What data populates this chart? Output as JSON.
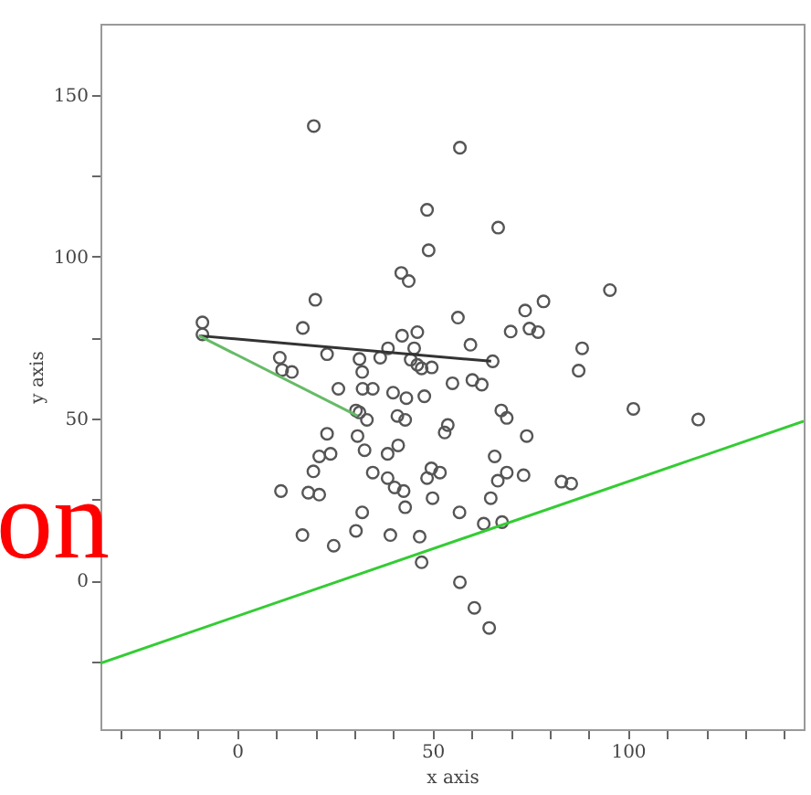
{
  "chart_data": {
    "type": "scatter",
    "xlabel": "x axis",
    "ylabel": "y axis",
    "xlim": [
      -35,
      145
    ],
    "ylim": [
      -46,
      172
    ],
    "xticks": [
      {
        "value": -30,
        "label": null
      },
      {
        "value": -20,
        "label": null
      },
      {
        "value": -10,
        "label": null
      },
      0,
      {
        "value": 10,
        "label": null
      },
      {
        "value": 20,
        "label": null
      },
      {
        "value": 30,
        "label": null
      },
      {
        "value": 40,
        "label": null
      },
      50,
      {
        "value": 60,
        "label": null
      },
      {
        "value": 70,
        "label": null
      },
      {
        "value": 80,
        "label": null
      },
      {
        "value": 90,
        "label": null
      },
      100,
      {
        "value": 110,
        "label": null
      },
      {
        "value": 120,
        "label": null
      },
      {
        "value": 130,
        "label": null
      },
      {
        "value": 140,
        "label": null
      }
    ],
    "yticks": [
      {
        "value": -25,
        "label": null
      },
      0,
      {
        "value": 25,
        "label": null
      },
      50,
      {
        "value": 75,
        "label": null
      },
      100,
      {
        "value": 125,
        "label": null
      },
      150
    ],
    "grid": false,
    "marker": "circle",
    "annotations": [
      "on"
    ],
    "series": [
      {
        "color": "#555555",
        "x": [
          19.6,
          57,
          48.6,
          66.8,
          49,
          42,
          43.9,
          20,
          95.4,
          78.4,
          73.7,
          56.5,
          -8.9,
          16.8,
          70,
          74.8,
          77,
          42.2,
          46.1,
          -8.9,
          59.7,
          88.3,
          38.6,
          45.3,
          23,
          10.9,
          31.3,
          36.6,
          44.4,
          65.4,
          46.1,
          11.5,
          14,
          32,
          87.4,
          49.8,
          47.2,
          55.1,
          60.2,
          62.6,
          25.9,
          32.1,
          34.7,
          39.9,
          43.3,
          47.9,
          101.4,
          118,
          67.6,
          69,
          30.4,
          31.3,
          41,
          43,
          33.2,
          53.9,
          53.1,
          23,
          30.8,
          74.1,
          41.2,
          32.6,
          38.5,
          23.9,
          21,
          65.9,
          19.5,
          34.7,
          49.7,
          51.9,
          48.6,
          69,
          73.3,
          66.7,
          38.5,
          40.3,
          42.6,
          83,
          85.5,
          11.2,
          18.2,
          21,
          50,
          64.9,
          43,
          32,
          56.9,
          63.1,
          67.8,
          16.7,
          30.4,
          39.2,
          46.7,
          24.7,
          47.2,
          57,
          60.7,
          64.5
        ],
        "values": [
          140.4,
          133.7,
          114.5,
          109,
          102,
          95,
          92.5,
          86.7,
          89.7,
          86.2,
          83.4,
          81.2,
          79.7,
          78,
          76.9,
          77.8,
          76.7,
          75.6,
          76.7,
          76,
          72.8,
          71.7,
          71.7,
          71.7,
          69.9,
          68.8,
          68.4,
          68.8,
          68.2,
          67.7,
          66.6,
          65,
          64.4,
          64.4,
          64.8,
          65.8,
          65.5,
          60.9,
          61.9,
          60.5,
          59.2,
          59.2,
          59.2,
          58,
          56.3,
          56.9,
          53,
          49.7,
          52.5,
          50.2,
          52.5,
          51.9,
          50.8,
          49.6,
          49.6,
          48,
          45.7,
          45.3,
          44.6,
          44.6,
          41.7,
          40.2,
          39.1,
          39.1,
          38.3,
          38.3,
          33.7,
          33.3,
          34.6,
          33.3,
          31.6,
          33.3,
          32.5,
          30.8,
          31.6,
          28.7,
          27.6,
          30.5,
          29.9,
          27.6,
          27.1,
          26.5,
          25.4,
          25.4,
          22.6,
          21,
          21,
          17.5,
          18,
          14,
          15.3,
          14,
          13.5,
          10.7,
          5.6,
          -0.6,
          -8.5,
          -14.7
        ]
      },
      {
        "type": "line",
        "color": "#333333",
        "marker": "none",
        "x": [
          -9.8,
          65
        ],
        "values": [
          75.6,
          67.7
        ]
      },
      {
        "type": "line",
        "color": "#66bb66",
        "marker": "none",
        "x": [
          -9.8,
          30.8
        ],
        "values": [
          75.6,
          50.8
        ]
      },
      {
        "type": "line",
        "color": "#33cc33",
        "marker": "none",
        "x": [
          -35,
          145
        ],
        "values": [
          -25.6,
          49.2
        ]
      }
    ]
  }
}
